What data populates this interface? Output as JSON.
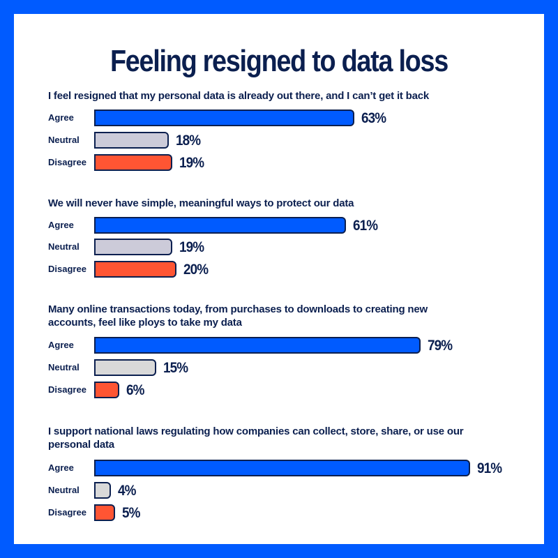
{
  "colors": {
    "frame": "#005bff",
    "text": "#0b1f4f",
    "agree": "#005bff",
    "neutral": "#cccbd9",
    "neutral_alt": "#d9d9d9",
    "disagree": "#ff5533"
  },
  "chart_data": {
    "type": "bar",
    "orientation": "horizontal",
    "title": "Feeling resigned to data loss",
    "categories": [
      "Agree",
      "Neutral",
      "Disagree"
    ],
    "unit": "%",
    "xlim": [
      0,
      100
    ],
    "grid": false,
    "groups": [
      {
        "question": "I feel resigned that my personal data is already out there, and I can’t get it back",
        "values": [
          63,
          18,
          19
        ],
        "labels": [
          "63%",
          "18%",
          "19%"
        ]
      },
      {
        "question": "We will never have simple, meaningful ways to protect our data",
        "values": [
          61,
          19,
          20
        ],
        "labels": [
          "61%",
          "19%",
          "20%"
        ]
      },
      {
        "question": "Many online transactions today, from purchases to downloads to creating new accounts, feel like ploys to take my data",
        "values": [
          79,
          15,
          6
        ],
        "labels": [
          "79%",
          "15%",
          "6%"
        ]
      },
      {
        "question": "I support national laws regulating how companies can collect, store, share, or use our personal data",
        "values": [
          91,
          4,
          5
        ],
        "labels": [
          "91%",
          "4%",
          "5%"
        ]
      }
    ]
  }
}
